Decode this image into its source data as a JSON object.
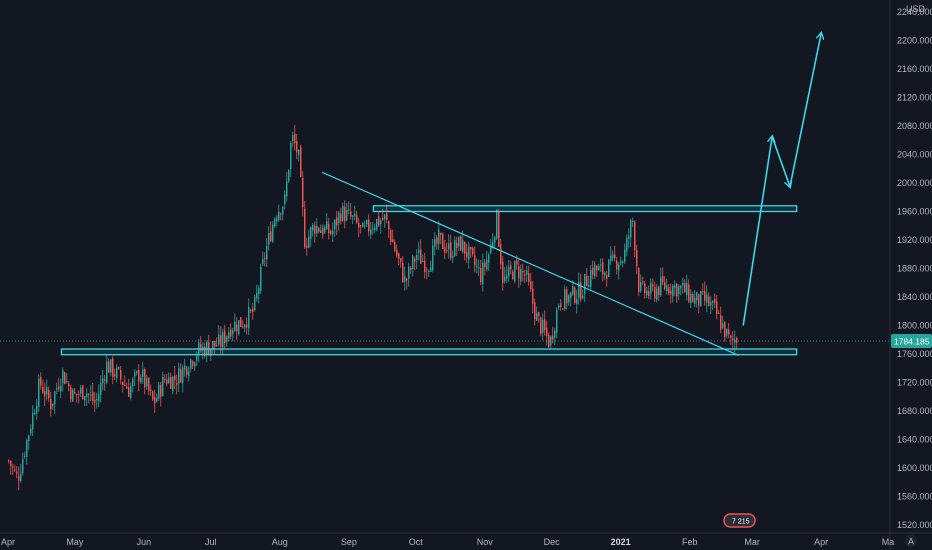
{
  "chart_data": {
    "type": "candlestick",
    "instrument_unit": "USD",
    "last_price": "1784.185",
    "bottom_badge": "7 215",
    "corner_icon": "A",
    "ylim": [
      1510,
      2260
    ],
    "y_ticks": [
      "2240.000",
      "2200.000",
      "2160.000",
      "2120.000",
      "2080.000",
      "2040.000",
      "2000.000",
      "1960.000",
      "1920.000",
      "1880.000",
      "1840.000",
      "1800.000",
      "1760.000",
      "1720.000",
      "1680.000",
      "1640.000",
      "1600.000",
      "1560.000",
      "1520.000"
    ],
    "x_ticks": [
      {
        "label": "Apr",
        "date": "2020-04-01"
      },
      {
        "label": "May",
        "date": "2020-05-01"
      },
      {
        "label": "Jun",
        "date": "2020-06-01"
      },
      {
        "label": "Jul",
        "date": "2020-07-01"
      },
      {
        "label": "Aug",
        "date": "2020-08-01"
      },
      {
        "label": "Sep",
        "date": "2020-09-01"
      },
      {
        "label": "Oct",
        "date": "2020-10-01"
      },
      {
        "label": "Nov",
        "date": "2020-11-01"
      },
      {
        "label": "Dec",
        "date": "2020-12-01"
      },
      {
        "label": "2021",
        "date": "2021-01-01",
        "bold": true
      },
      {
        "label": "Feb",
        "date": "2021-02-01"
      },
      {
        "label": "Mar",
        "date": "2021-03-01"
      },
      {
        "label": "Apr",
        "date": "2021-04-01"
      },
      {
        "label": "Ma",
        "date": "2021-05-01"
      }
    ],
    "price_path": [
      [
        "2020-04-01",
        1610
      ],
      [
        "2020-04-05",
        1585
      ],
      [
        "2020-04-10",
        1650
      ],
      [
        "2020-04-15",
        1720
      ],
      [
        "2020-04-20",
        1690
      ],
      [
        "2020-04-25",
        1735
      ],
      [
        "2020-04-30",
        1700
      ],
      [
        "2020-05-05",
        1710
      ],
      [
        "2020-05-10",
        1690
      ],
      [
        "2020-05-15",
        1745
      ],
      [
        "2020-05-20",
        1730
      ],
      [
        "2020-05-25",
        1710
      ],
      [
        "2020-05-30",
        1735
      ],
      [
        "2020-06-05",
        1690
      ],
      [
        "2020-06-10",
        1725
      ],
      [
        "2020-06-15",
        1725
      ],
      [
        "2020-06-20",
        1745
      ],
      [
        "2020-06-25",
        1765
      ],
      [
        "2020-06-30",
        1770
      ],
      [
        "2020-07-05",
        1775
      ],
      [
        "2020-07-10",
        1800
      ],
      [
        "2020-07-15",
        1805
      ],
      [
        "2020-07-20",
        1820
      ],
      [
        "2020-07-25",
        1900
      ],
      [
        "2020-07-30",
        1960
      ],
      [
        "2020-08-03",
        1975
      ],
      [
        "2020-08-06",
        2065
      ],
      [
        "2020-08-09",
        2040
      ],
      [
        "2020-08-12",
        1915
      ],
      [
        "2020-08-16",
        1940
      ],
      [
        "2020-08-20",
        1935
      ],
      [
        "2020-08-24",
        1930
      ],
      [
        "2020-08-28",
        1960
      ],
      [
        "2020-09-02",
        1950
      ],
      [
        "2020-09-07",
        1930
      ],
      [
        "2020-09-12",
        1945
      ],
      [
        "2020-09-17",
        1950
      ],
      [
        "2020-09-22",
        1900
      ],
      [
        "2020-09-26",
        1860
      ],
      [
        "2020-10-01",
        1900
      ],
      [
        "2020-10-06",
        1885
      ],
      [
        "2020-10-11",
        1920
      ],
      [
        "2020-10-16",
        1905
      ],
      [
        "2020-10-21",
        1915
      ],
      [
        "2020-10-26",
        1890
      ],
      [
        "2020-10-30",
        1870
      ],
      [
        "2020-11-03",
        1905
      ],
      [
        "2020-11-06",
        1950
      ],
      [
        "2020-11-09",
        1860
      ],
      [
        "2020-11-14",
        1880
      ],
      [
        "2020-11-19",
        1870
      ],
      [
        "2020-11-24",
        1810
      ],
      [
        "2020-11-30",
        1775
      ],
      [
        "2020-12-04",
        1835
      ],
      [
        "2020-12-09",
        1840
      ],
      [
        "2020-12-14",
        1850
      ],
      [
        "2020-12-19",
        1880
      ],
      [
        "2020-12-24",
        1875
      ],
      [
        "2020-12-29",
        1890
      ],
      [
        "2021-01-02",
        1895
      ],
      [
        "2021-01-06",
        1950
      ],
      [
        "2021-01-09",
        1850
      ],
      [
        "2021-01-14",
        1845
      ],
      [
        "2021-01-19",
        1855
      ],
      [
        "2021-01-24",
        1855
      ],
      [
        "2021-01-29",
        1850
      ],
      [
        "2021-02-03",
        1835
      ],
      [
        "2021-02-08",
        1835
      ],
      [
        "2021-02-12",
        1820
      ],
      [
        "2021-02-16",
        1795
      ],
      [
        "2021-02-19",
        1775
      ],
      [
        "2021-02-22",
        1784
      ]
    ],
    "annotations": {
      "resistance_zone": {
        "y1": 1960,
        "y2": 1968,
        "x1": "2020-09-12",
        "x2": "2021-03-21"
      },
      "support_zone": {
        "y1": 1759,
        "y2": 1767,
        "x1": "2020-04-25",
        "x2": "2021-03-21"
      },
      "descending_trendline": {
        "from": [
          "2020-08-20",
          2015
        ],
        "to": [
          "2021-02-23",
          1758
        ]
      },
      "projection_arrow": [
        [
          "2021-02-25",
          1800
        ],
        [
          "2021-03-10",
          2065
        ],
        [
          "2021-03-18",
          1995
        ],
        [
          "2021-04-01",
          2210
        ]
      ]
    },
    "colors": {
      "background": "#131722",
      "up": "#26a69a",
      "down": "#ef5350",
      "drawing": "#3ad8e8",
      "axis_text": "#b2b5be",
      "price_tag": "#26a69a"
    }
  }
}
